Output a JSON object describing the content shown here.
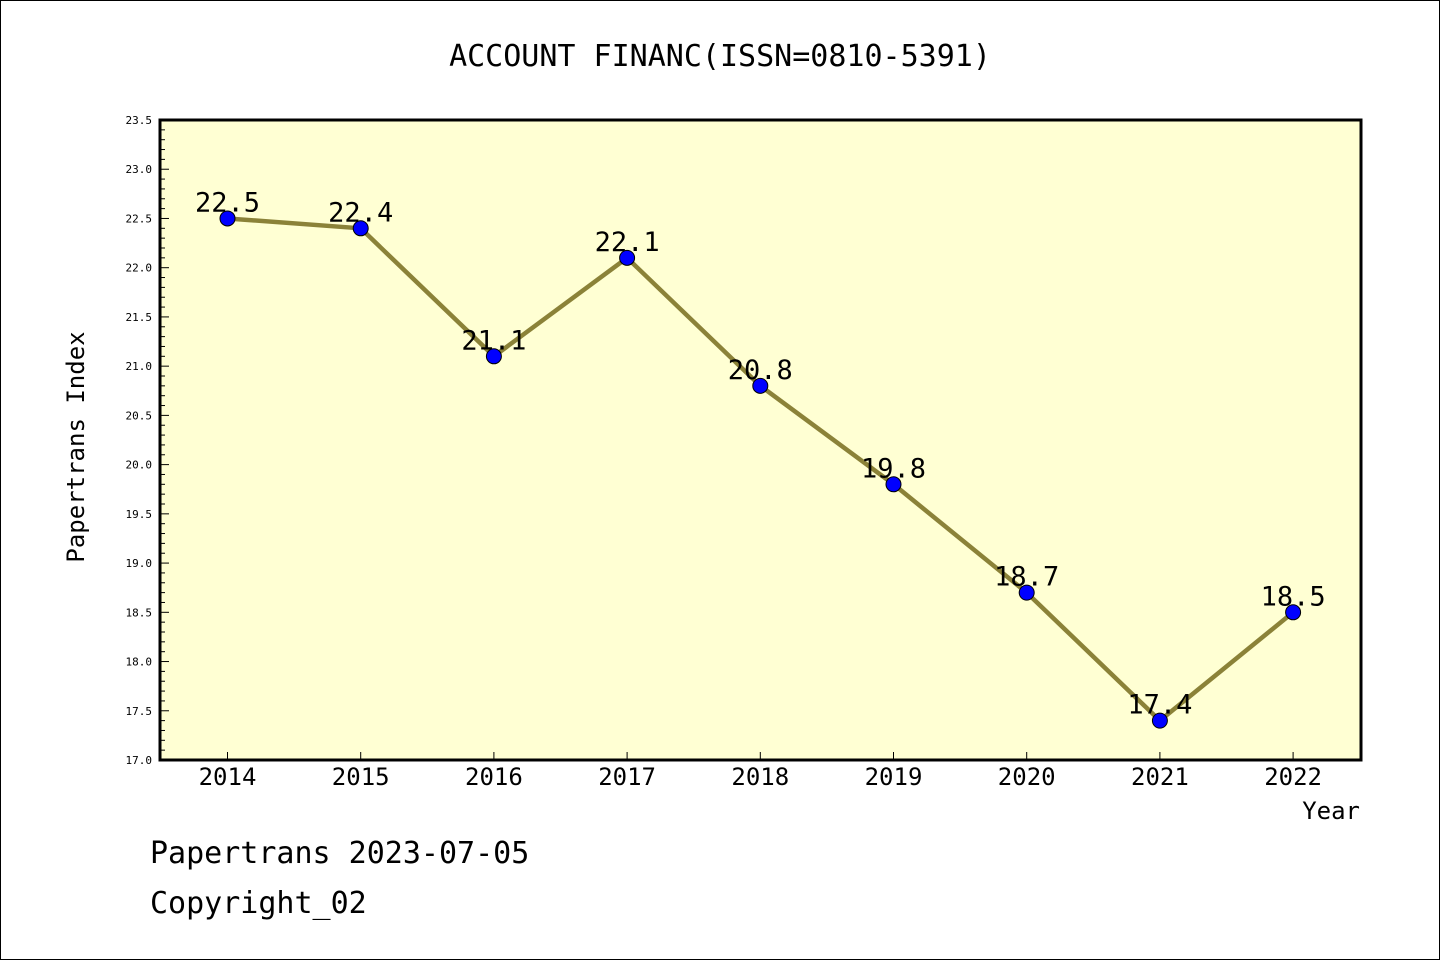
{
  "chart_data": {
    "type": "line",
    "title": "ACCOUNT FINANC(ISSN=0810-5391)",
    "xlabel": "Year",
    "ylabel": "Papertrans Index",
    "x": [
      "2014",
      "2015",
      "2016",
      "2017",
      "2018",
      "2019",
      "2020",
      "2021",
      "2022"
    ],
    "series": [
      {
        "values": [
          22.5,
          22.4,
          21.1,
          22.1,
          20.8,
          19.8,
          18.7,
          17.4,
          18.5
        ],
        "data_labels": [
          "22.5",
          "22.4",
          "21.1",
          "22.1",
          "20.8",
          "19.8",
          "18.7",
          "17.4",
          "18.5"
        ]
      }
    ],
    "ylim": [
      17.0,
      23.5
    ],
    "yticks": [
      "17.0",
      "17.5",
      "18.0",
      "18.5",
      "19.0",
      "19.5",
      "20.0",
      "20.5",
      "21.0",
      "21.5",
      "22.0",
      "22.5",
      "23.0",
      "23.5"
    ],
    "grid": false,
    "legend": "none",
    "colors": {
      "plot_background": "#ffffd3",
      "line": "#8b8238",
      "marker": "#0000ff"
    }
  },
  "footer": {
    "line1": "Papertrans 2023-07-05",
    "line2": "Copyright_02"
  }
}
